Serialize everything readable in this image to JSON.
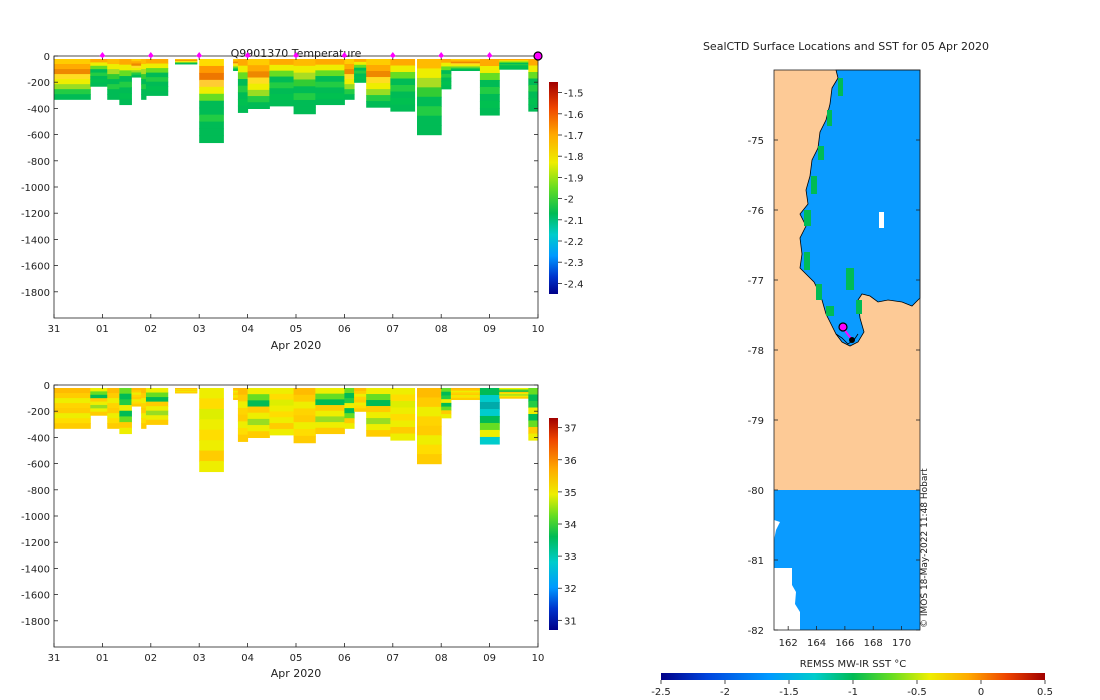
{
  "chart_data": [
    {
      "type": "heatmap",
      "title": "Q9901370  Temperature",
      "xlabel": "Apr 2020",
      "x_ticks": [
        "31",
        "01",
        "02",
        "03",
        "04",
        "05",
        "06",
        "07",
        "08",
        "09",
        "10"
      ],
      "y_ticks": [
        0,
        -200,
        -400,
        -600,
        -800,
        -1000,
        -1200,
        -1400,
        -1600,
        -1800
      ],
      "ylim": [
        -2000,
        0
      ],
      "colorbar_ticks": [
        -1.5,
        -1.6,
        -1.7,
        -1.8,
        -1.9,
        -2,
        -2.1,
        -2.2,
        -2.3,
        -2.4
      ],
      "colorbar_range": [
        -2.45,
        -1.45
      ],
      "profile_markers_days": [
        1,
        2,
        3,
        4,
        5,
        6,
        7,
        8,
        9
      ],
      "profiles": [
        {
          "day": 0.0,
          "w": 0.75,
          "depth": -330,
          "palette": "t_warm"
        },
        {
          "day": 0.75,
          "w": 0.35,
          "depth": -230,
          "palette": "t_green"
        },
        {
          "day": 1.1,
          "w": 0.25,
          "depth": -330,
          "palette": "t_mid"
        },
        {
          "day": 1.35,
          "w": 0.25,
          "depth": -370,
          "palette": "t_green"
        },
        {
          "day": 1.6,
          "w": 0.2,
          "depth": -160,
          "palette": "t_warm"
        },
        {
          "day": 1.8,
          "w": 0.1,
          "depth": -330,
          "palette": "t_mid"
        },
        {
          "day": 1.9,
          "w": 0.45,
          "depth": -300,
          "palette": "t_green"
        },
        {
          "day": 2.5,
          "w": 0.45,
          "depth": -60,
          "palette": "t_warm"
        },
        {
          "day": 3.0,
          "w": 0.5,
          "depth": -660,
          "palette": "t_deep"
        },
        {
          "day": 3.7,
          "w": 0.1,
          "depth": -110,
          "palette": "t_warm"
        },
        {
          "day": 3.8,
          "w": 0.2,
          "depth": -430,
          "palette": "t_green"
        },
        {
          "day": 4.0,
          "w": 0.45,
          "depth": -400,
          "palette": "t_warm"
        },
        {
          "day": 4.45,
          "w": 0.5,
          "depth": -380,
          "palette": "t_green"
        },
        {
          "day": 4.95,
          "w": 0.45,
          "depth": -440,
          "palette": "t_mid"
        },
        {
          "day": 5.4,
          "w": 0.6,
          "depth": -370,
          "palette": "t_green"
        },
        {
          "day": 6.0,
          "w": 0.2,
          "depth": -330,
          "palette": "t_warm"
        },
        {
          "day": 6.2,
          "w": 0.25,
          "depth": -200,
          "palette": "t_green"
        },
        {
          "day": 6.45,
          "w": 0.5,
          "depth": -390,
          "palette": "t_warm"
        },
        {
          "day": 6.95,
          "w": 0.5,
          "depth": -420,
          "palette": "t_green"
        },
        {
          "day": 7.5,
          "w": 0.5,
          "depth": -600,
          "palette": "t_mid"
        },
        {
          "day": 8.0,
          "w": 0.2,
          "depth": -250,
          "palette": "t_green"
        },
        {
          "day": 8.2,
          "w": 0.6,
          "depth": -110,
          "palette": "t_warm"
        },
        {
          "day": 8.8,
          "w": 0.4,
          "depth": -450,
          "palette": "t_green"
        },
        {
          "day": 9.2,
          "w": 0.6,
          "depth": -100,
          "palette": "t_green"
        },
        {
          "day": 9.8,
          "w": 0.2,
          "depth": -420,
          "palette": "t_green"
        }
      ]
    },
    {
      "type": "heatmap",
      "title": "",
      "xlabel": "Apr 2020",
      "x_ticks": [
        "31",
        "01",
        "02",
        "03",
        "04",
        "05",
        "06",
        "07",
        "08",
        "09",
        "10"
      ],
      "y_ticks": [
        0,
        -200,
        -400,
        -600,
        -800,
        -1000,
        -1200,
        -1400,
        -1600,
        -1800
      ],
      "ylim": [
        -2000,
        0
      ],
      "colorbar_ticks": [
        37,
        36,
        35,
        34,
        33,
        32,
        31
      ],
      "colorbar_range": [
        30.7,
        37.3
      ],
      "profiles": [
        {
          "day": 0.0,
          "w": 0.75,
          "depth": -330,
          "palette": "s_warm"
        },
        {
          "day": 0.75,
          "w": 0.35,
          "depth": -230,
          "palette": "s_mid"
        },
        {
          "day": 1.1,
          "w": 0.25,
          "depth": -330,
          "palette": "s_warm"
        },
        {
          "day": 1.35,
          "w": 0.25,
          "depth": -370,
          "palette": "s_green"
        },
        {
          "day": 1.6,
          "w": 0.2,
          "depth": -160,
          "palette": "s_warm"
        },
        {
          "day": 1.8,
          "w": 0.1,
          "depth": -330,
          "palette": "s_warm"
        },
        {
          "day": 1.9,
          "w": 0.45,
          "depth": -300,
          "palette": "s_mid"
        },
        {
          "day": 2.5,
          "w": 0.45,
          "depth": -60,
          "palette": "s_warm"
        },
        {
          "day": 3.0,
          "w": 0.5,
          "depth": -660,
          "palette": "s_yellow"
        },
        {
          "day": 3.7,
          "w": 0.1,
          "depth": -110,
          "palette": "s_warm"
        },
        {
          "day": 3.8,
          "w": 0.2,
          "depth": -430,
          "palette": "s_warm"
        },
        {
          "day": 4.0,
          "w": 0.45,
          "depth": -400,
          "palette": "s_mid"
        },
        {
          "day": 4.45,
          "w": 0.5,
          "depth": -380,
          "palette": "s_yellow"
        },
        {
          "day": 4.95,
          "w": 0.45,
          "depth": -440,
          "palette": "s_warm"
        },
        {
          "day": 5.4,
          "w": 0.6,
          "depth": -370,
          "palette": "s_mid"
        },
        {
          "day": 6.0,
          "w": 0.2,
          "depth": -330,
          "palette": "s_green"
        },
        {
          "day": 6.2,
          "w": 0.25,
          "depth": -200,
          "palette": "s_warm"
        },
        {
          "day": 6.45,
          "w": 0.5,
          "depth": -390,
          "palette": "s_mid"
        },
        {
          "day": 6.95,
          "w": 0.5,
          "depth": -420,
          "palette": "s_yellow"
        },
        {
          "day": 7.5,
          "w": 0.5,
          "depth": -600,
          "palette": "s_warm"
        },
        {
          "day": 8.0,
          "w": 0.2,
          "depth": -250,
          "palette": "s_green"
        },
        {
          "day": 8.2,
          "w": 0.6,
          "depth": -110,
          "palette": "s_warm"
        },
        {
          "day": 8.8,
          "w": 0.4,
          "depth": -450,
          "palette": "s_cyan"
        },
        {
          "day": 9.2,
          "w": 0.6,
          "depth": -100,
          "palette": "s_mid"
        },
        {
          "day": 9.8,
          "w": 0.2,
          "depth": -420,
          "palette": "s_green"
        }
      ]
    },
    {
      "type": "heatmap",
      "title": "SealCTD Surface Locations and SST for 05 Apr 2020",
      "x_ticks": [
        "162",
        "164",
        "166",
        "168",
        "170"
      ],
      "y_ticks": [
        "-75",
        "-76",
        "-77",
        "-78",
        "-79",
        "-80",
        "-81",
        "-82"
      ],
      "xlim": [
        161,
        171.3
      ],
      "ylim": [
        -82,
        -74
      ],
      "colorbar_label": "REMSS MW-IR SST °C",
      "colorbar_ticks": [
        "-2.5",
        "-2",
        "-1.5",
        "-1",
        "-0.5",
        "0",
        "0.5"
      ],
      "colorbar_range": [
        -2.5,
        0.5
      ],
      "stamp": "© IMOS 18-May-2022 11:48 Hobart"
    }
  ],
  "colors": {
    "ocean": "#0a9bff",
    "land": "#fdca96",
    "marker": "#ff00ff",
    "marker_edge": "#000000"
  }
}
